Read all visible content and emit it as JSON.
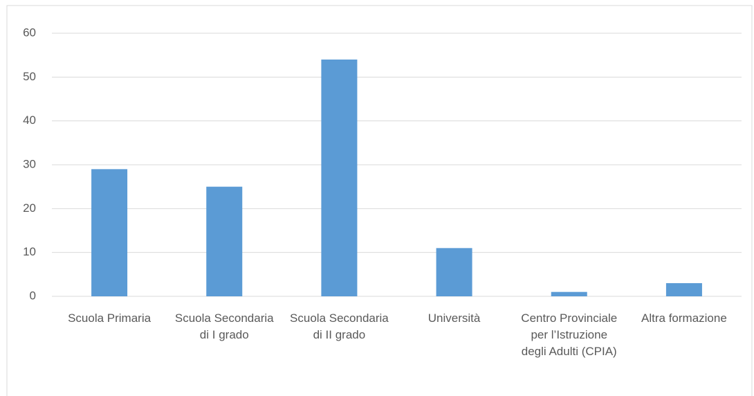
{
  "chart_data": {
    "type": "bar",
    "categories": [
      "Scuola Primaria",
      "Scuola Secondaria di I grado",
      "Scuola Secondaria di II grado",
      "Università",
      "Centro Provinciale per l’Istruzione degli Adulti (CPIA)",
      "Altra formazione"
    ],
    "values": [
      29,
      25,
      54,
      11,
      1,
      3
    ],
    "color": "#5b9bd5",
    "ylim": [
      0,
      60
    ],
    "yticks": [
      0,
      10,
      20,
      30,
      40,
      50,
      60
    ],
    "grid": true
  }
}
